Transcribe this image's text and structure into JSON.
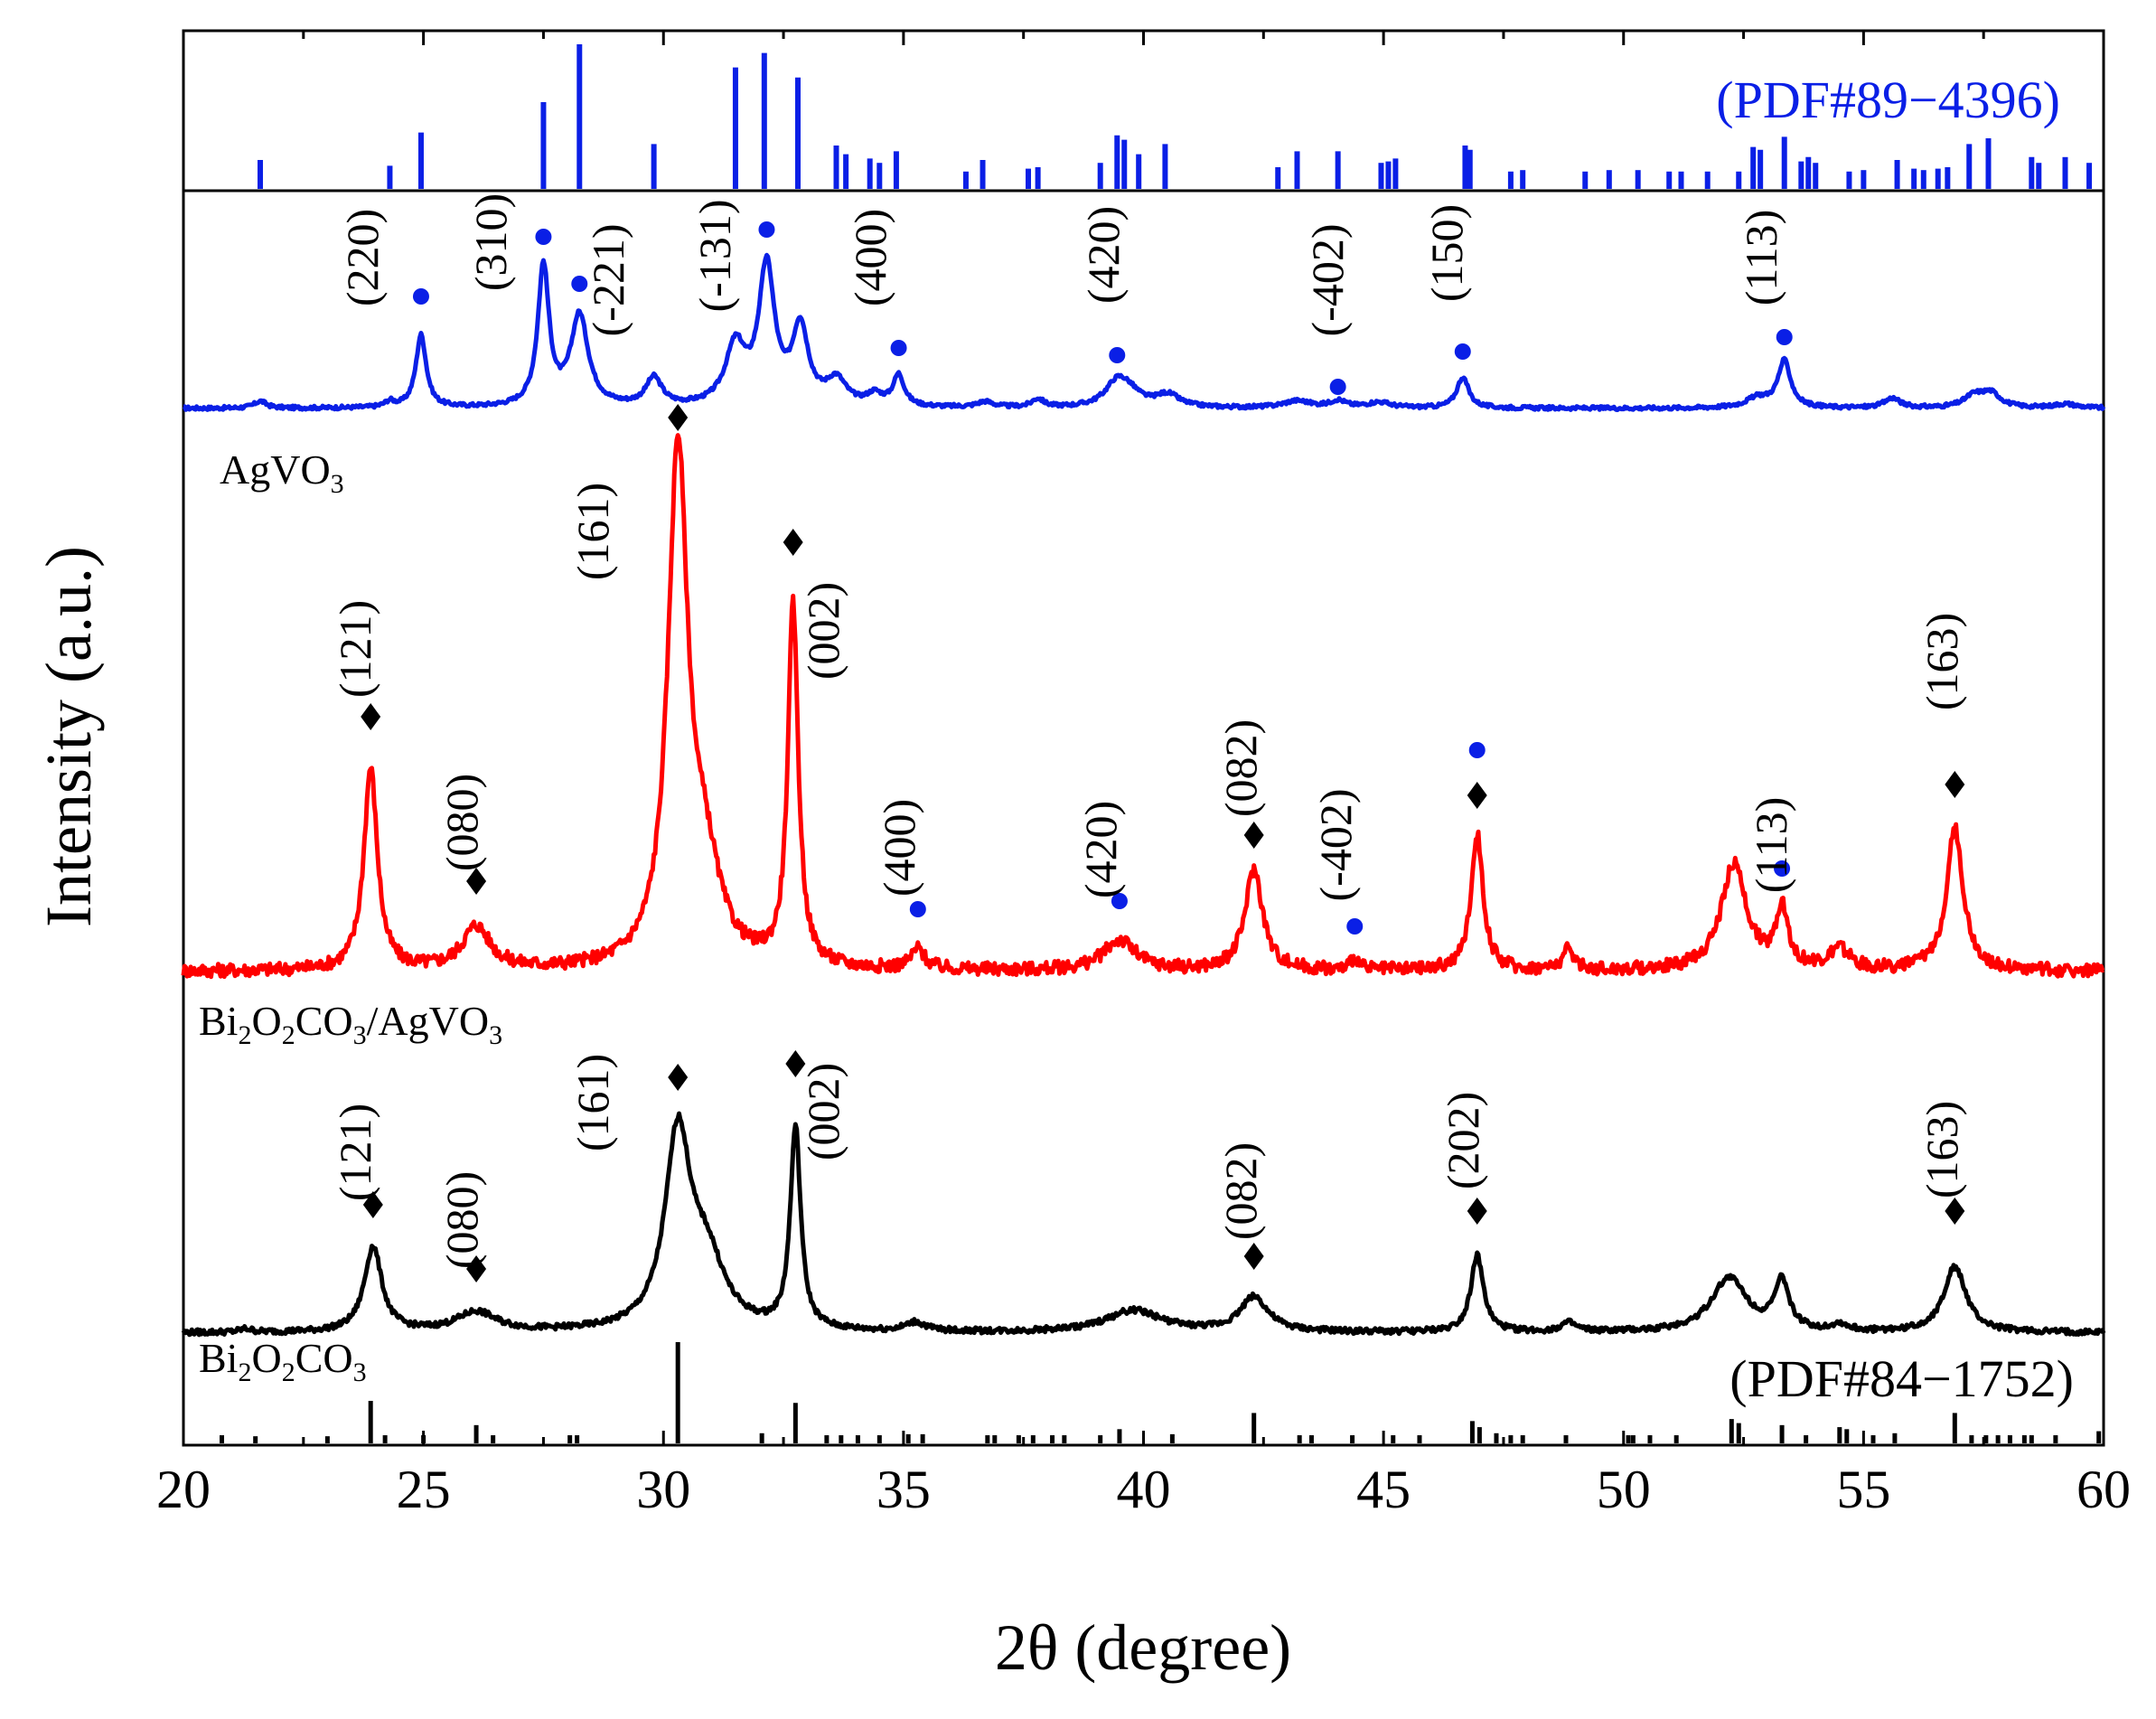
{
  "chart_data": {
    "type": "line",
    "xlabel": "2θ (degree)",
    "ylabel": "Intensity (a.u.)",
    "xlim": [
      20,
      60
    ],
    "xticks": [
      20,
      25,
      30,
      35,
      40,
      45,
      50,
      55,
      60
    ],
    "xtick_labels": [
      "20",
      "25",
      "30",
      "35",
      "40",
      "45",
      "50",
      "55",
      "60"
    ],
    "colors": {
      "blue": "#0a1fe6",
      "red": "#ff0000",
      "black": "#000000"
    },
    "reference_top": {
      "label": "(PDF#89−4396)",
      "color": "#0a1fe6",
      "x": [
        21.6,
        24.3,
        24.95,
        27.5,
        28.25,
        29.8,
        31.5,
        32.1,
        32.8,
        33.6,
        33.8,
        34.3,
        34.5,
        34.85,
        36.3,
        36.65,
        37.6,
        37.8,
        39.1,
        39.45,
        39.6,
        39.9,
        40.45,
        42.8,
        43.2,
        44.05,
        44.95,
        45.1,
        45.25,
        46.7,
        46.8,
        47.65,
        47.9,
        49.2,
        49.7,
        50.3,
        50.95,
        51.2,
        51.75,
        52.4,
        52.7,
        52.85,
        53.35,
        53.7,
        53.85,
        54.0,
        54.7,
        55.0,
        55.7,
        56.05,
        56.25,
        56.55,
        56.75,
        57.2,
        57.6,
        58.5,
        58.65,
        59.2,
        59.7
      ],
      "intensity": [
        20,
        16,
        39,
        60,
        100,
        31,
        84,
        94,
        77,
        30,
        24,
        21,
        18,
        26,
        12,
        20,
        14,
        15,
        18,
        37,
        34,
        24,
        31,
        15,
        26,
        26,
        18,
        19,
        21,
        30,
        27,
        12,
        13,
        12,
        13,
        13,
        12,
        12,
        12,
        12,
        29,
        27,
        36,
        19,
        22,
        18,
        12,
        13,
        20,
        14,
        13,
        14,
        15,
        31,
        35,
        22,
        18,
        22,
        18
      ]
    },
    "reference_bottom": {
      "label": "(PDF#84−1752)",
      "color": "#000000",
      "x": [
        20.8,
        21.5,
        23.0,
        23.9,
        24.2,
        25.0,
        26.1,
        26.45,
        28.05,
        28.2,
        30.3,
        32.05,
        32.75,
        33.4,
        33.7,
        34.05,
        34.5,
        35.1,
        35.4,
        36.75,
        36.9,
        37.4,
        37.7,
        38.1,
        38.35,
        39.1,
        39.5,
        40.6,
        42.3,
        43.25,
        43.5,
        44.35,
        45.2,
        45.75,
        46.85,
        47.0,
        47.35,
        47.65,
        47.9,
        48.8,
        50.1,
        50.2,
        50.55,
        51.1,
        52.25,
        52.4,
        53.3,
        53.8,
        54.5,
        54.65,
        55.2,
        55.65,
        56.9,
        57.25,
        57.55,
        57.8,
        58.05,
        58.35,
        58.5,
        59.0,
        59.9
      ],
      "intensity": [
        8,
        7,
        7,
        42,
        8,
        8,
        18,
        8,
        8,
        8,
        100,
        10,
        40,
        8,
        8,
        8,
        8,
        9,
        9,
        8,
        8,
        8,
        8,
        8,
        8,
        8,
        14,
        9,
        30,
        8,
        8,
        8,
        8,
        8,
        22,
        16,
        10,
        8,
        8,
        8,
        8,
        8,
        8,
        8,
        24,
        20,
        18,
        8,
        16,
        14,
        8,
        10,
        30,
        8,
        8,
        8,
        8,
        8,
        8,
        8,
        12
      ]
    },
    "series": [
      {
        "name": "AgVO₃",
        "legend_base": "AgVO",
        "legend_sub": "3",
        "color": "#0a1fe6",
        "baseline": 0,
        "peaks": [
          {
            "x": 21.6,
            "h": 5,
            "w": 0.15
          },
          {
            "x": 24.3,
            "h": 4,
            "w": 0.12
          },
          {
            "x": 24.95,
            "h": 52,
            "w": 0.13
          },
          {
            "x": 27.5,
            "h": 100,
            "w": 0.14
          },
          {
            "x": 28.25,
            "h": 65,
            "w": 0.22
          },
          {
            "x": 29.8,
            "h": 20,
            "w": 0.2
          },
          {
            "x": 31.5,
            "h": 42,
            "w": 0.25
          },
          {
            "x": 32.15,
            "h": 98,
            "w": 0.2
          },
          {
            "x": 32.85,
            "h": 55,
            "w": 0.2
          },
          {
            "x": 33.6,
            "h": 18,
            "w": 0.25
          },
          {
            "x": 34.4,
            "h": 8,
            "w": 0.2
          },
          {
            "x": 34.9,
            "h": 22,
            "w": 0.14
          },
          {
            "x": 36.7,
            "h": 4,
            "w": 0.2
          },
          {
            "x": 37.8,
            "h": 6,
            "w": 0.15
          },
          {
            "x": 39.45,
            "h": 17,
            "w": 0.3
          },
          {
            "x": 39.7,
            "h": 8,
            "w": 0.3
          },
          {
            "x": 40.5,
            "h": 9,
            "w": 0.3
          },
          {
            "x": 43.2,
            "h": 5,
            "w": 0.35
          },
          {
            "x": 44.05,
            "h": 5,
            "w": 0.2
          },
          {
            "x": 44.9,
            "h": 4,
            "w": 0.3
          },
          {
            "x": 46.65,
            "h": 22,
            "w": 0.15
          },
          {
            "x": 52.8,
            "h": 7,
            "w": 0.3
          },
          {
            "x": 53.35,
            "h": 33,
            "w": 0.16
          },
          {
            "x": 55.6,
            "h": 7,
            "w": 0.2
          },
          {
            "x": 57.3,
            "h": 8,
            "w": 0.25
          },
          {
            "x": 57.65,
            "h": 10,
            "w": 0.25
          },
          {
            "x": 59.2,
            "h": 3,
            "w": 0.3
          }
        ]
      },
      {
        "name": "Bi₂O₂CO₃/AgVO₃",
        "legend_parts": [
          {
            "t": "Bi",
            "sub": false
          },
          {
            "t": "2",
            "sub": true
          },
          {
            "t": "O",
            "sub": false
          },
          {
            "t": "2",
            "sub": true
          },
          {
            "t": "CO",
            "sub": false
          },
          {
            "t": "3",
            "sub": true
          },
          {
            "t": "/AgVO",
            "sub": false
          },
          {
            "t": "3",
            "sub": true
          }
        ],
        "color": "#ff0000",
        "baseline": 0,
        "peaks": [
          {
            "x": 23.9,
            "h": 40,
            "w": 0.17
          },
          {
            "x": 26.1,
            "h": 8.5,
            "w": 0.35
          },
          {
            "x": 30.3,
            "h": 100,
            "w": 0.25
          },
          {
            "x": 30.85,
            "h": 18,
            "w": 0.4
          },
          {
            "x": 32.7,
            "h": 71,
            "w": 0.13
          },
          {
            "x": 35.3,
            "h": 4,
            "w": 0.17
          },
          {
            "x": 39.5,
            "h": 6,
            "w": 0.4
          },
          {
            "x": 42.3,
            "h": 20,
            "w": 0.22
          },
          {
            "x": 44.4,
            "h": 2.5,
            "w": 0.1
          },
          {
            "x": 46.95,
            "h": 27,
            "w": 0.15
          },
          {
            "x": 48.85,
            "h": 4,
            "w": 0.15
          },
          {
            "x": 52.3,
            "h": 21,
            "w": 0.32
          },
          {
            "x": 53.3,
            "h": 12,
            "w": 0.15
          },
          {
            "x": 54.5,
            "h": 4,
            "w": 0.25
          },
          {
            "x": 56.9,
            "h": 28,
            "w": 0.21
          }
        ]
      },
      {
        "name": "Bi₂O₂CO₃",
        "legend_parts": [
          {
            "t": "Bi",
            "sub": false
          },
          {
            "t": "2",
            "sub": true
          },
          {
            "t": "O",
            "sub": false
          },
          {
            "t": "2",
            "sub": true
          },
          {
            "t": "CO",
            "sub": false
          },
          {
            "t": "3",
            "sub": true
          }
        ],
        "color": "#000000",
        "baseline": 0,
        "peaks": [
          {
            "x": 21.3,
            "h": 1.5,
            "w": 0.15
          },
          {
            "x": 23.95,
            "h": 39,
            "w": 0.22
          },
          {
            "x": 26.1,
            "h": 9,
            "w": 0.5
          },
          {
            "x": 30.3,
            "h": 88,
            "w": 0.32
          },
          {
            "x": 30.9,
            "h": 30,
            "w": 0.45
          },
          {
            "x": 32.75,
            "h": 92,
            "w": 0.13
          },
          {
            "x": 35.25,
            "h": 4,
            "w": 0.25
          },
          {
            "x": 39.8,
            "h": 10,
            "w": 0.7
          },
          {
            "x": 42.3,
            "h": 16,
            "w": 0.35
          },
          {
            "x": 46.95,
            "h": 35,
            "w": 0.16
          },
          {
            "x": 48.85,
            "h": 4,
            "w": 0.2
          },
          {
            "x": 52.2,
            "h": 25,
            "w": 0.45
          },
          {
            "x": 53.3,
            "h": 22,
            "w": 0.18
          },
          {
            "x": 54.5,
            "h": 3,
            "w": 0.2
          },
          {
            "x": 56.9,
            "h": 30,
            "w": 0.28
          }
        ]
      }
    ],
    "annotations": {
      "blue_peaks": [
        {
          "label": "(220)",
          "x": 24.95
        },
        {
          "label": "(310)",
          "x": 27.5
        },
        {
          "label": "(-221)",
          "x": 28.25
        },
        {
          "label": "(-131)",
          "x": 31.5
        },
        {
          "label": "(400)",
          "x": 34.9
        },
        {
          "label": "(420)",
          "x": 39.45
        },
        {
          "label": "(-402)",
          "x": 44.05
        },
        {
          "label": "(150)",
          "x": 46.65
        },
        {
          "label": "(113)",
          "x": 53.35
        }
      ],
      "red_peaks": [
        {
          "label": "(121)",
          "x": 23.9
        },
        {
          "label": "(080)",
          "x": 26.1
        },
        {
          "label": "(161)",
          "x": 30.3
        },
        {
          "label": "(002)",
          "x": 32.7
        },
        {
          "label": "(400)",
          "x": 35.3
        },
        {
          "label": "(420)",
          "x": 39.5
        },
        {
          "label": "(082)",
          "x": 42.3
        },
        {
          "label": "(-402)",
          "x": 44.4
        },
        {
          "label": "",
          "x": 46.95
        },
        {
          "label": "(113)",
          "x": 53.3
        },
        {
          "label": "(163)",
          "x": 56.9
        }
      ],
      "black_peaks": [
        {
          "label": "(121)",
          "x": 23.95
        },
        {
          "label": "(080)",
          "x": 26.1
        },
        {
          "label": "(161)",
          "x": 30.3
        },
        {
          "label": "(002)",
          "x": 32.75
        },
        {
          "label": "(082)",
          "x": 42.3
        },
        {
          "label": "(202)",
          "x": 46.95
        },
        {
          "label": "(163)",
          "x": 56.9
        }
      ]
    }
  }
}
